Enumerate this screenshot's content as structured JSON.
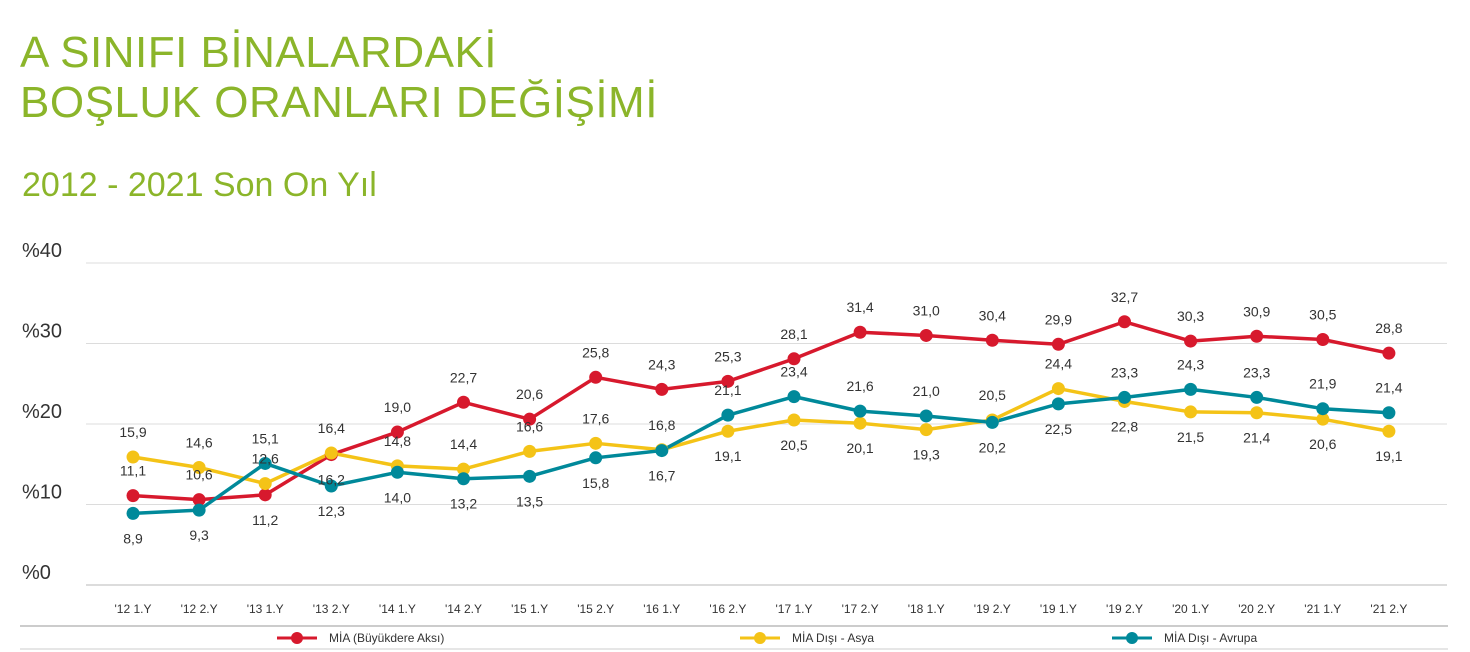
{
  "header": {
    "title_line1": "A SINIFI BİNALARDAKİ",
    "title_line2": "BOŞLUK ORANLARI DEĞİŞİMİ",
    "subtitle": "2012 - 2021 Son On Yıl"
  },
  "chart_data": {
    "type": "line",
    "categories": [
      "'12 1.Y",
      "'12 2.Y",
      "'13 1.Y",
      "'13 2.Y",
      "'14 1.Y",
      "'14 2.Y",
      "'15 1.Y",
      "'15 2.Y",
      "'16 1.Y",
      "'16 2.Y",
      "'17 1.Y",
      "'17 2.Y",
      "'18 1.Y",
      "'19 2.Y",
      "'19 1.Y",
      "'19 2.Y",
      "'20 1.Y",
      "'20 2.Y",
      "'21 1.Y",
      "'21 2.Y"
    ],
    "y_ticks": [
      "%0",
      "%10",
      "%20",
      "%30",
      "%40"
    ],
    "ylim": [
      0,
      40
    ],
    "grid": true,
    "legend_position": "bottom",
    "series": [
      {
        "name": "MİA (Büyükdere Aksı)",
        "color": "#d7192d",
        "values": [
          11.1,
          10.6,
          11.2,
          16.2,
          19.0,
          22.7,
          20.6,
          25.8,
          24.3,
          25.3,
          28.1,
          31.4,
          31.0,
          30.4,
          29.9,
          32.7,
          30.3,
          30.9,
          30.5,
          28.8
        ],
        "labels": [
          "11,1",
          "10,6",
          "11,2",
          "16,2",
          "19,0",
          "22,7",
          "20,6",
          "25,8",
          "24,3",
          "25,3",
          "28,1",
          "31,4",
          "31,0",
          "30,4",
          "29,9",
          "32,7",
          "30,3",
          "30,9",
          "30,5",
          "28,8"
        ]
      },
      {
        "name": "MİA Dışı - Asya",
        "color": "#f4c317",
        "values": [
          15.9,
          14.6,
          12.6,
          16.4,
          14.8,
          14.4,
          16.6,
          17.6,
          16.8,
          19.1,
          20.5,
          20.1,
          19.3,
          20.5,
          24.4,
          22.8,
          21.5,
          21.4,
          20.6,
          19.1
        ],
        "labels": [
          "15,9",
          "14,6",
          "12,6",
          "16,4",
          "14,8",
          "14,4",
          "16,6",
          "17,6",
          "16,8",
          "19,1",
          "20,5",
          "20,1",
          "19,3",
          "20,5",
          "24,4",
          "22,8",
          "21,5",
          "21,4",
          "20,6",
          "19,1"
        ]
      },
      {
        "name": "MİA Dışı - Avrupa",
        "color": "#00899a",
        "values": [
          8.9,
          9.3,
          15.1,
          12.3,
          14.0,
          13.2,
          13.5,
          15.8,
          16.7,
          21.1,
          23.4,
          21.6,
          21.0,
          20.2,
          22.5,
          23.3,
          24.3,
          23.3,
          21.9,
          21.4
        ],
        "labels": [
          "8,9",
          "9,3",
          "15,1",
          "12,3",
          "14,0",
          "13,2",
          "13,5",
          "15,8",
          "16,7",
          "21,1",
          "23,4",
          "21,6",
          "21,0",
          "20,2",
          "22,5",
          "23,3",
          "24,3",
          "23,3",
          "21,9",
          "21,4"
        ]
      }
    ]
  }
}
